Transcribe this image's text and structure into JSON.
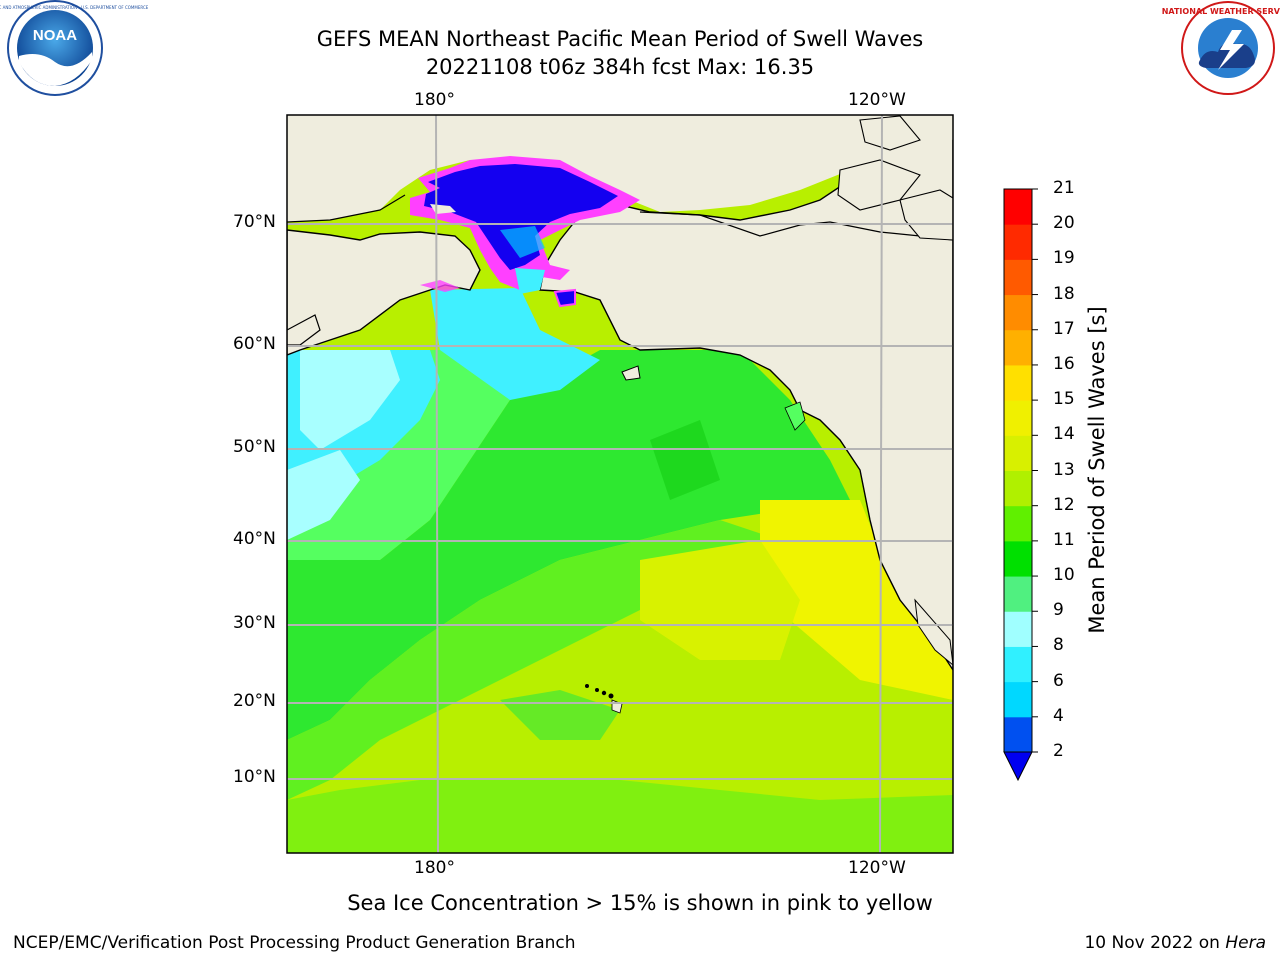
{
  "title_line1": "GEFS MEAN Northeast Pacific Mean Period of Swell Waves",
  "title_line2": "20221108 t06z 384h fcst   Max: 16.35",
  "lon_labels": [
    "180°",
    "120°W"
  ],
  "lat_labels": [
    "70°N",
    "60°N",
    "50°N",
    "40°N",
    "30°N",
    "20°N",
    "10°N"
  ],
  "colorbar": {
    "label": "Mean Period of Swell Waves [s]",
    "ticks": [
      "2",
      "4",
      "6",
      "8",
      "9",
      "10",
      "11",
      "12",
      "13",
      "14",
      "15",
      "16",
      "17",
      "18",
      "19",
      "20",
      "21"
    ],
    "colors": [
      "#0050f0",
      "#00d8ff",
      "#30f0ff",
      "#a0ffff",
      "#50f080",
      "#00e000",
      "#60f000",
      "#b0f000",
      "#d8f000",
      "#f0f000",
      "#ffe000",
      "#ffb000",
      "#ff8c00",
      "#ff5a00",
      "#ff2a00",
      "#ff0000"
    ],
    "under_color": "#0000f0"
  },
  "colors": {
    "land": "#efedde",
    "ice_blue": "#1400f0",
    "ice_pink": "#ff40ff",
    "grid": "#b4b4b4"
  },
  "sea_ice_note": "Sea Ice Concentration > 15% is shown in pink to yellow",
  "credit": "NCEP/EMC/Verification Post Processing Product Generation Branch",
  "date_text": "10 Nov 2022 on",
  "date_host": "Hera",
  "logos": {
    "noaa": "NOAA",
    "noaa_ring": "NATIONAL OCEANIC AND ATMOSPHERIC ADMINISTRATION · U.S. DEPARTMENT OF COMMERCE",
    "nws": "NATIONAL WEATHER SERVICE"
  }
}
